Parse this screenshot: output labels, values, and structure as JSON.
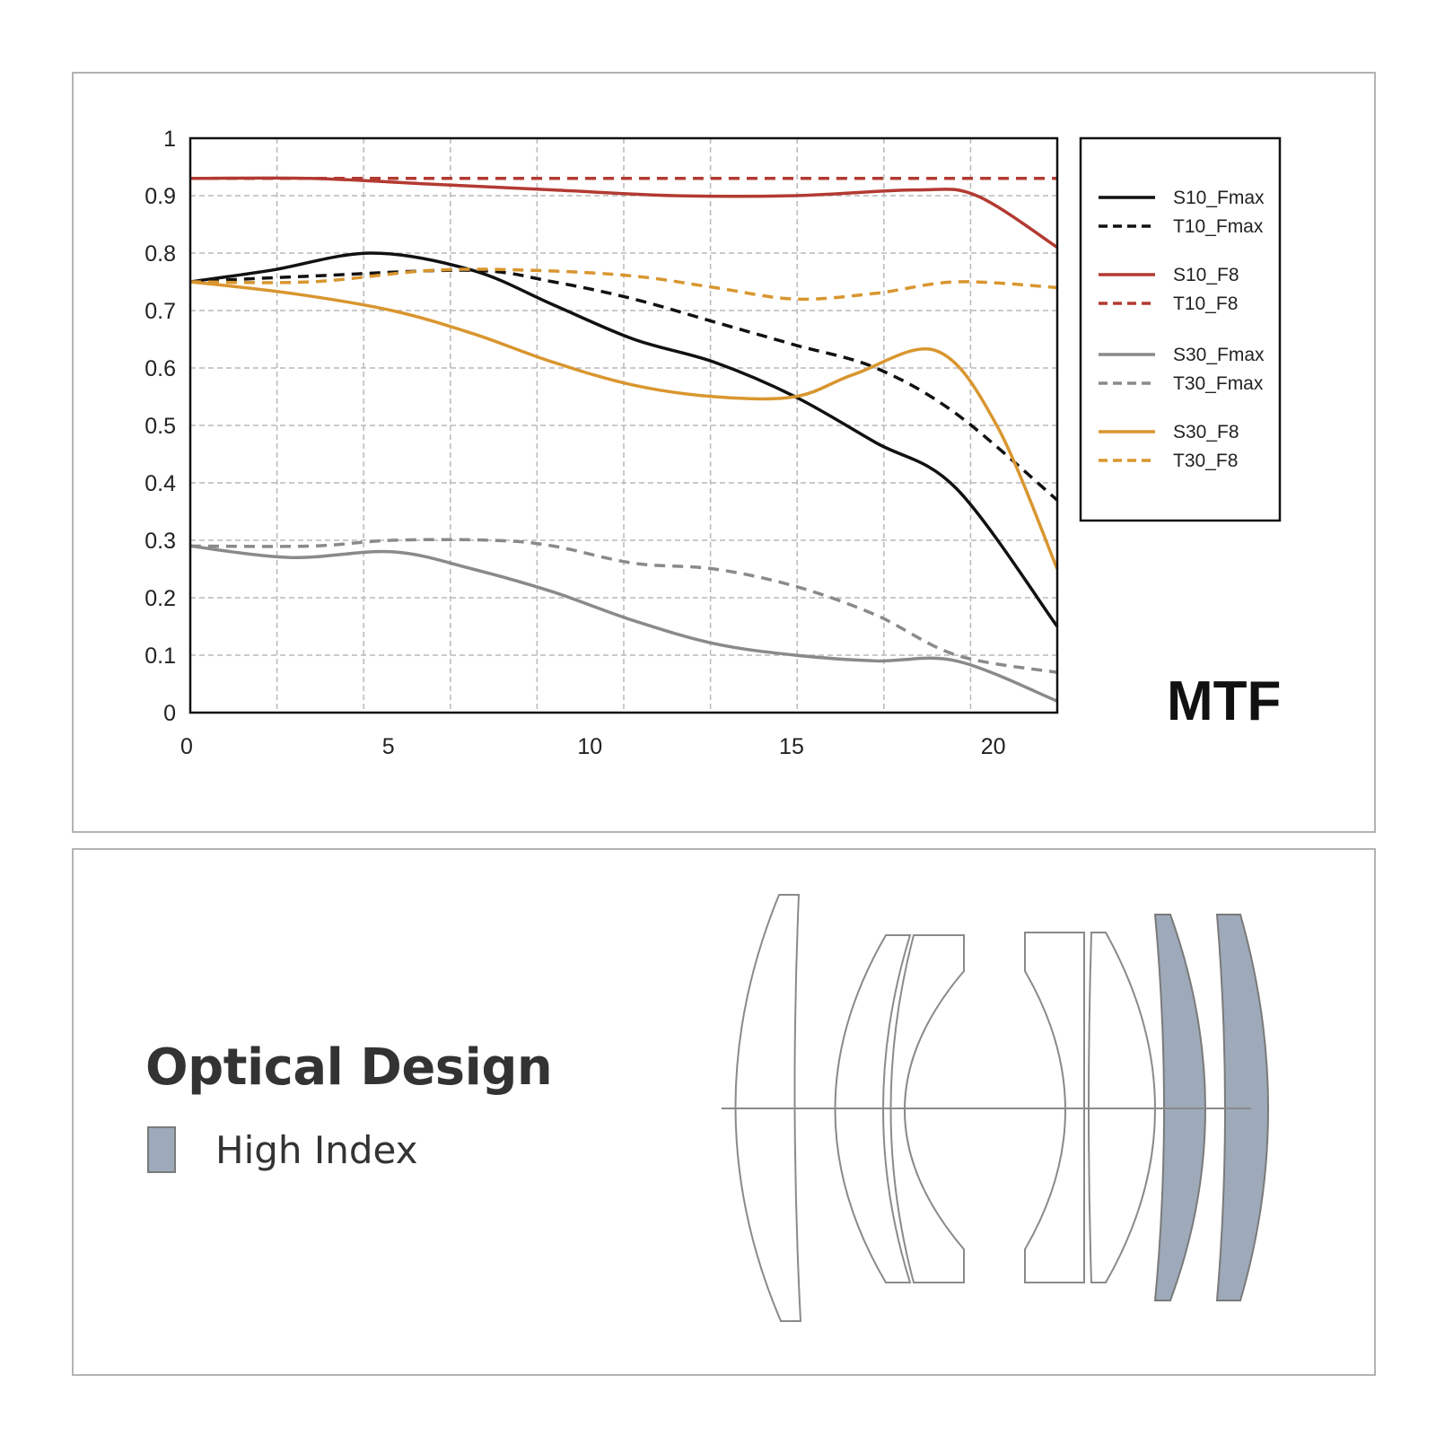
{
  "chart_data": {
    "type": "line",
    "title": "MTF",
    "xlabel": "",
    "ylabel": "",
    "xlim": [
      0,
      21.5
    ],
    "ylim": [
      0,
      1
    ],
    "x_ticks": [
      "0",
      "5",
      "10",
      "15",
      "20"
    ],
    "y_ticks": [
      "0",
      "0.1",
      "0.2",
      "0.3",
      "0.4",
      "0.5",
      "0.6",
      "0.7",
      "0.8",
      "0.9",
      "1"
    ],
    "grid": true,
    "legend_position": "right",
    "series": [
      {
        "name": "S10_Fmax",
        "color": "#111111",
        "dash": false,
        "x": [
          0,
          2,
          4.5,
          7,
          9,
          11,
          13,
          15,
          17,
          19,
          21.5
        ],
        "y": [
          0.75,
          0.77,
          0.8,
          0.77,
          0.71,
          0.65,
          0.61,
          0.55,
          0.47,
          0.39,
          0.15
        ]
      },
      {
        "name": "T10_Fmax",
        "color": "#111111",
        "dash": true,
        "x": [
          0,
          3,
          7,
          9,
          11,
          13,
          15,
          17,
          19,
          21.5
        ],
        "y": [
          0.75,
          0.76,
          0.77,
          0.75,
          0.72,
          0.68,
          0.64,
          0.6,
          0.52,
          0.37
        ]
      },
      {
        "name": "S10_F8",
        "color": "#b33a32",
        "dash": false,
        "x": [
          0,
          3,
          6,
          9,
          12,
          15,
          18,
          19.5,
          21.5
        ],
        "y": [
          0.93,
          0.93,
          0.92,
          0.91,
          0.9,
          0.9,
          0.91,
          0.9,
          0.81
        ]
      },
      {
        "name": "T10_F8",
        "color": "#b33a32",
        "dash": true,
        "x": [
          0,
          5,
          10,
          15,
          21.5
        ],
        "y": [
          0.93,
          0.93,
          0.93,
          0.93,
          0.93
        ]
      },
      {
        "name": "S30_Fmax",
        "color": "#8a8a8a",
        "dash": false,
        "x": [
          0,
          2.5,
          5,
          7,
          9,
          11,
          13,
          15,
          17,
          19,
          21.5
        ],
        "y": [
          0.29,
          0.27,
          0.28,
          0.25,
          0.21,
          0.16,
          0.12,
          0.1,
          0.09,
          0.09,
          0.02
        ]
      },
      {
        "name": "T30_Fmax",
        "color": "#8a8a8a",
        "dash": true,
        "x": [
          0,
          3,
          5,
          7.5,
          9,
          11,
          13,
          15,
          17,
          19,
          21.5
        ],
        "y": [
          0.29,
          0.29,
          0.3,
          0.3,
          0.29,
          0.26,
          0.25,
          0.22,
          0.17,
          0.1,
          0.07
        ]
      },
      {
        "name": "S30_F8",
        "color": "#d9962f",
        "dash": false,
        "x": [
          0,
          2.5,
          5,
          7,
          9,
          11,
          13,
          15,
          16.5,
          18.5,
          20,
          21.5
        ],
        "y": [
          0.75,
          0.73,
          0.7,
          0.66,
          0.61,
          0.57,
          0.55,
          0.55,
          0.59,
          0.63,
          0.5,
          0.25
        ]
      },
      {
        "name": "T30_F8",
        "color": "#d9962f",
        "dash": true,
        "x": [
          0,
          3,
          6,
          8.5,
          11,
          13,
          15,
          17,
          19,
          21.5
        ],
        "y": [
          0.75,
          0.75,
          0.77,
          0.77,
          0.76,
          0.74,
          0.72,
          0.73,
          0.75,
          0.74
        ]
      }
    ]
  },
  "optical_design": {
    "title": "Optical Design",
    "legend_label": "High Index",
    "high_index_color": "#9eaaba"
  }
}
